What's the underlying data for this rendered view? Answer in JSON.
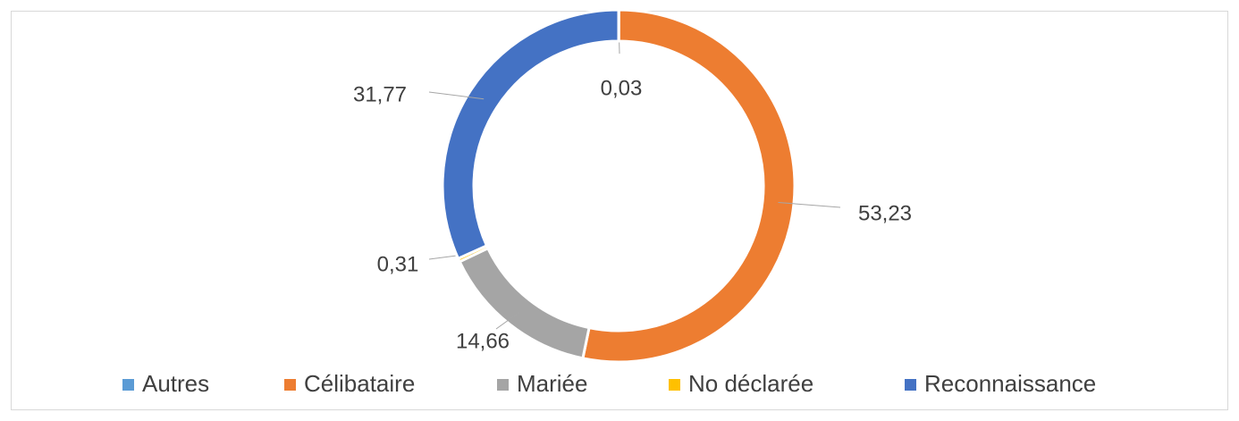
{
  "chart_data": {
    "type": "donut",
    "categories": [
      "Autres",
      "Célibataire",
      "Mariée",
      "No déclarée",
      "Reconnaissance"
    ],
    "values": [
      0.03,
      53.23,
      14.66,
      0.31,
      31.77
    ],
    "value_labels": [
      "0,03",
      "53,23",
      "14,66",
      "0,31",
      "31,77"
    ],
    "colors": [
      "#5b9bd5",
      "#ed7d31",
      "#a5a5a5",
      "#ffc000",
      "#4472c4"
    ],
    "legend": "bottom"
  }
}
